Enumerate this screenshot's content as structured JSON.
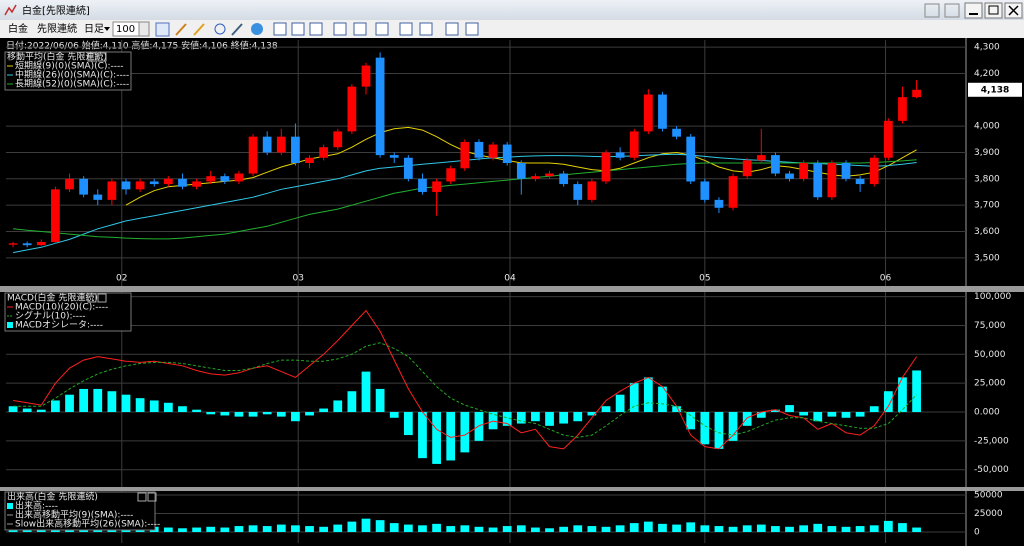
{
  "window": {
    "title": "白金[先限連続]",
    "menu": [
      "白金",
      "先限連続",
      "日足"
    ],
    "period": "100"
  },
  "chart_data": [
    {
      "type": "candlestick",
      "info": "日付:2022/06/06 始値:4,110 高値:4,175 安値:4,106 終値:4,138",
      "legend_title": "移動平均(白金 先限連続)",
      "last_label": "4,138",
      "up_color": "#ff0000",
      "down_color": "#1e90ff",
      "ohlc": [
        [
          3550,
          3560,
          3540,
          3555
        ],
        [
          3555,
          3562,
          3540,
          3548
        ],
        [
          3548,
          3570,
          3545,
          3560
        ],
        [
          3560,
          3770,
          3555,
          3760
        ],
        [
          3760,
          3820,
          3750,
          3800
        ],
        [
          3800,
          3810,
          3730,
          3740
        ],
        [
          3740,
          3760,
          3700,
          3720
        ],
        [
          3720,
          3800,
          3700,
          3790
        ],
        [
          3790,
          3800,
          3740,
          3760
        ],
        [
          3760,
          3800,
          3750,
          3790
        ],
        [
          3790,
          3800,
          3770,
          3780
        ],
        [
          3780,
          3810,
          3770,
          3800
        ],
        [
          3800,
          3820,
          3760,
          3770
        ],
        [
          3770,
          3800,
          3760,
          3790
        ],
        [
          3790,
          3830,
          3780,
          3810
        ],
        [
          3810,
          3820,
          3780,
          3790
        ],
        [
          3790,
          3830,
          3780,
          3820
        ],
        [
          3820,
          3970,
          3810,
          3960
        ],
        [
          3960,
          3980,
          3890,
          3900
        ],
        [
          3900,
          3990,
          3890,
          3960
        ],
        [
          3960,
          4010,
          3850,
          3860
        ],
        [
          3860,
          3890,
          3840,
          3880
        ],
        [
          3880,
          3930,
          3870,
          3920
        ],
        [
          3920,
          3990,
          3910,
          3980
        ],
        [
          3980,
          4160,
          3970,
          4150
        ],
        [
          4150,
          4240,
          4120,
          4230
        ],
        [
          4260,
          4280,
          3880,
          3890
        ],
        [
          3890,
          3900,
          3860,
          3880
        ],
        [
          3880,
          3890,
          3790,
          3800
        ],
        [
          3800,
          3820,
          3740,
          3750
        ],
        [
          3750,
          3800,
          3660,
          3790
        ],
        [
          3790,
          3850,
          3780,
          3840
        ],
        [
          3840,
          3950,
          3830,
          3940
        ],
        [
          3940,
          3950,
          3870,
          3880
        ],
        [
          3880,
          3940,
          3870,
          3930
        ],
        [
          3930,
          3940,
          3850,
          3860
        ],
        [
          3860,
          3870,
          3740,
          3800
        ],
        [
          3800,
          3820,
          3790,
          3810
        ],
        [
          3810,
          3830,
          3800,
          3820
        ],
        [
          3820,
          3830,
          3770,
          3780
        ],
        [
          3780,
          3790,
          3700,
          3720
        ],
        [
          3720,
          3800,
          3710,
          3790
        ],
        [
          3790,
          3910,
          3780,
          3900
        ],
        [
          3900,
          3920,
          3870,
          3880
        ],
        [
          3880,
          3990,
          3870,
          3980
        ],
        [
          3980,
          4140,
          3970,
          4120
        ],
        [
          4120,
          4130,
          3980,
          3990
        ],
        [
          3990,
          4000,
          3950,
          3960
        ],
        [
          3960,
          3970,
          3780,
          3790
        ],
        [
          3790,
          3800,
          3710,
          3720
        ],
        [
          3720,
          3730,
          3670,
          3690
        ],
        [
          3690,
          3820,
          3680,
          3810
        ],
        [
          3810,
          3880,
          3800,
          3870
        ],
        [
          3870,
          3990,
          3860,
          3890
        ],
        [
          3890,
          3900,
          3810,
          3820
        ],
        [
          3820,
          3830,
          3790,
          3800
        ],
        [
          3800,
          3870,
          3790,
          3860
        ],
        [
          3860,
          3870,
          3720,
          3730
        ],
        [
          3730,
          3870,
          3720,
          3860
        ],
        [
          3860,
          3870,
          3790,
          3800
        ],
        [
          3800,
          3810,
          3750,
          3780
        ],
        [
          3780,
          3890,
          3770,
          3880
        ],
        [
          3880,
          4030,
          3870,
          4020
        ],
        [
          4020,
          4150,
          4010,
          4110
        ],
        [
          4110,
          4175,
          4106,
          4138
        ]
      ],
      "series": [
        {
          "name": "短期線(9)(0)(SMA)(C):----",
          "color": "#e6d200",
          "values": [
            null,
            null,
            null,
            null,
            null,
            null,
            null,
            null,
            3700,
            3730,
            3755,
            3770,
            3775,
            3780,
            3785,
            3790,
            3795,
            3805,
            3825,
            3845,
            3860,
            3875,
            3885,
            3895,
            3920,
            3950,
            3975,
            3990,
            3995,
            3985,
            3960,
            3930,
            3905,
            3890,
            3880,
            3870,
            3860,
            3860,
            3860,
            3855,
            3845,
            3835,
            3830,
            3840,
            3860,
            3880,
            3895,
            3900,
            3890,
            3870,
            3845,
            3830,
            3825,
            3835,
            3850,
            3845,
            3835,
            3825,
            3815,
            3810,
            3815,
            3825,
            3850,
            3880,
            3910
          ]
        },
        {
          "name": "中期線(26)(0)(SMA)(C):----",
          "color": "#30c8e8",
          "values": [
            3520,
            3530,
            3540,
            3555,
            3570,
            3590,
            3610,
            3625,
            3640,
            3650,
            3660,
            3670,
            3680,
            3690,
            3700,
            3710,
            3720,
            3730,
            3745,
            3760,
            3770,
            3780,
            3790,
            3800,
            3815,
            3830,
            3840,
            3845,
            3850,
            3855,
            3860,
            3865,
            3870,
            3875,
            3880,
            3882,
            3885,
            3887,
            3888,
            3888,
            3887,
            3885,
            3884,
            3885,
            3887,
            3890,
            3892,
            3893,
            3890,
            3885,
            3880,
            3876,
            3872,
            3870,
            3866,
            3863,
            3860,
            3858,
            3855,
            3853,
            3850,
            3848,
            3850,
            3855,
            3862
          ]
        },
        {
          "name": "長期線(52)(0)(SMA)(C):----",
          "color": "#22b030",
          "values": [
            3610,
            3605,
            3600,
            3595,
            3590,
            3585,
            3580,
            3578,
            3575,
            3573,
            3572,
            3572,
            3575,
            3580,
            3585,
            3590,
            3600,
            3610,
            3620,
            3635,
            3650,
            3665,
            3675,
            3685,
            3700,
            3715,
            3730,
            3745,
            3755,
            3765,
            3770,
            3775,
            3780,
            3785,
            3790,
            3795,
            3800,
            3805,
            3810,
            3815,
            3820,
            3825,
            3830,
            3835,
            3840,
            3845,
            3850,
            3855,
            3858,
            3860,
            3860,
            3860,
            3860,
            3860,
            3860,
            3860,
            3860,
            3860,
            3860,
            3860,
            3860,
            3862,
            3865,
            3868,
            3872
          ]
        }
      ],
      "xlim": [
        -0.5,
        67.5
      ],
      "xticks": [
        {
          "value": 7.7,
          "label": "02"
        },
        {
          "value": 20.2,
          "label": "03"
        },
        {
          "value": 35.2,
          "label": "04"
        },
        {
          "value": 49.0,
          "label": "05"
        },
        {
          "value": 61.8,
          "label": "06"
        }
      ],
      "ylim": [
        3393,
        4327
      ],
      "yticks": [
        {
          "value": 3500,
          "label": "3,500"
        },
        {
          "value": 3600,
          "label": "3,600"
        },
        {
          "value": 3700,
          "label": "3,700"
        },
        {
          "value": 3800,
          "label": "3,800"
        },
        {
          "value": 3900,
          "label": "3,900"
        },
        {
          "value": 4000,
          "label": "4,000"
        },
        {
          "value": 4200,
          "label": "4,200"
        },
        {
          "value": 4300,
          "label": "4,300"
        }
      ],
      "grid": true
    },
    {
      "type": "combo",
      "legend_title": "MACD(白金 先限連続)",
      "series": [
        {
          "name": "MACD(10)(20)(C):----",
          "color": "#ff2020",
          "style": "line",
          "values": [
            10000,
            8000,
            6000,
            25000,
            38000,
            45000,
            48000,
            46000,
            44000,
            43000,
            44000,
            42000,
            40000,
            36000,
            33000,
            32000,
            34000,
            38000,
            40000,
            35000,
            30000,
            40000,
            50000,
            62000,
            75000,
            88000,
            70000,
            45000,
            20000,
            0,
            -15000,
            -22000,
            -20000,
            -12000,
            -8000,
            -10000,
            -18000,
            -15000,
            -30000,
            -32000,
            -20000,
            -5000,
            10000,
            18000,
            25000,
            30000,
            22000,
            5000,
            -20000,
            -30000,
            -32000,
            -20000,
            -5000,
            0,
            2000,
            -3000,
            -5000,
            -15000,
            -10000,
            -18000,
            -20000,
            -12000,
            5000,
            30000,
            48000
          ]
        },
        {
          "name": "シグナル(10):----",
          "color": "#22aa22",
          "style": "dashed",
          "values": [
            5000,
            5000,
            5000,
            12000,
            20000,
            27000,
            33000,
            37000,
            40000,
            42000,
            43000,
            43000,
            42000,
            40000,
            38000,
            36000,
            36000,
            38000,
            42000,
            45000,
            45000,
            44000,
            44000,
            46000,
            50000,
            57000,
            60000,
            55000,
            48000,
            35000,
            22000,
            12000,
            6000,
            2000,
            -2000,
            -5000,
            -8000,
            -10000,
            -15000,
            -20000,
            -22000,
            -20000,
            -12000,
            -3000,
            5000,
            8000,
            7000,
            5000,
            -3000,
            -12000,
            -18000,
            -20000,
            -17000,
            -12000,
            -7000,
            -5000,
            -5000,
            -8000,
            -10000,
            -12000,
            -14000,
            -14000,
            -10000,
            2000,
            15000
          ]
        },
        {
          "name": "MACDオシレータ:----",
          "color": "#00ffff",
          "style": "bar",
          "values": [
            5000,
            3000,
            2000,
            10000,
            15000,
            20000,
            20000,
            18000,
            15000,
            12000,
            10000,
            8000,
            5000,
            2000,
            -2000,
            -3000,
            -4000,
            -4000,
            -2000,
            -4000,
            -8000,
            -3000,
            3000,
            10000,
            18000,
            35000,
            20000,
            -5000,
            -20000,
            -40000,
            -45000,
            -42000,
            -35000,
            -25000,
            -15000,
            -12000,
            -10000,
            -8000,
            -12000,
            -10000,
            -8000,
            -3000,
            5000,
            15000,
            25000,
            30000,
            22000,
            5000,
            -15000,
            -28000,
            -32000,
            -25000,
            -12000,
            -5000,
            2000,
            6000,
            -3000,
            -8000,
            -4000,
            -5000,
            -4000,
            5000,
            18000,
            30000,
            36000
          ]
        }
      ],
      "ylim": [
        -65000,
        104000
      ],
      "yticks": [
        {
          "value": -50000,
          "label": "-50,000"
        },
        {
          "value": -25000,
          "label": "-25,000"
        },
        {
          "value": 0,
          "label": "0.000"
        },
        {
          "value": 25000,
          "label": "25,000"
        },
        {
          "value": 50000,
          "label": "50,000"
        },
        {
          "value": 75000,
          "label": "75,000"
        },
        {
          "value": 100000,
          "label": "100,000"
        }
      ],
      "grid": true
    },
    {
      "type": "bar",
      "legend_title": "出来高(白金 先限連続)",
      "series": [
        {
          "name": "出来高:----",
          "color": "#00ffff",
          "style": "bar",
          "values": [
            4000,
            5000,
            6000,
            9000,
            8000,
            7000,
            6000,
            6000,
            5000,
            6000,
            7000,
            6000,
            5000,
            6000,
            7000,
            6000,
            8000,
            9000,
            8000,
            10000,
            9000,
            8000,
            7000,
            10000,
            14000,
            18000,
            16000,
            12000,
            10000,
            9000,
            11000,
            8000,
            9000,
            7000,
            6000,
            8000,
            9000,
            6000,
            5000,
            7000,
            9000,
            8000,
            7000,
            9000,
            12000,
            14000,
            11000,
            10000,
            13000,
            9000,
            8000,
            7000,
            9000,
            10000,
            8000,
            7000,
            9000,
            11000,
            8000,
            7000,
            8000,
            9000,
            15000,
            12000,
            6000
          ]
        }
      ],
      "legend_items": [
        "出来高移動平均(9)(SMA):----",
        "Slow出来高移動平均(26)(SMA):----"
      ],
      "ylim": [
        -14900,
        55400
      ],
      "yticks": [
        0,
        25000,
        50000
      ],
      "grid": true
    }
  ]
}
